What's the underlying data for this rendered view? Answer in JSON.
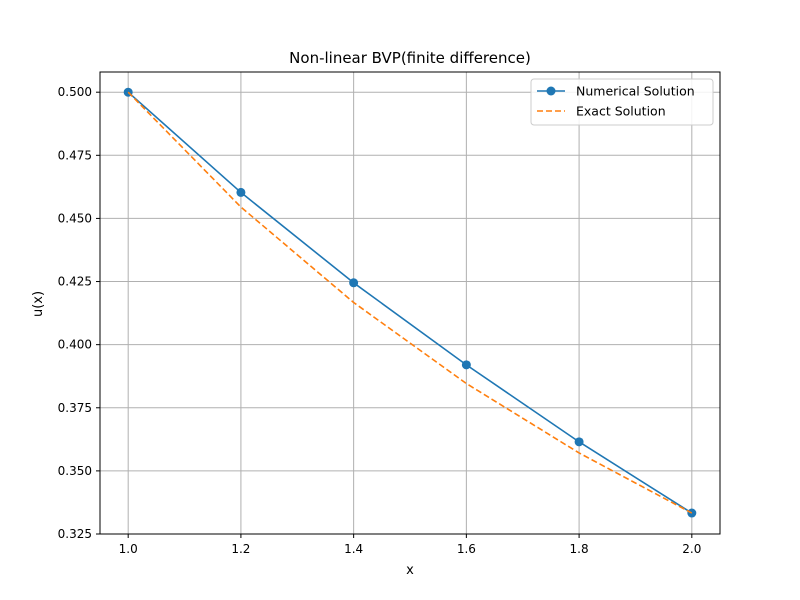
{
  "chart_data": {
    "type": "line",
    "title": "Non-linear BVP(finite difference)",
    "xlabel": "x",
    "ylabel": "u(x)",
    "xlim": [
      0.95,
      2.05
    ],
    "ylim": [
      0.325,
      0.508
    ],
    "xticks": [
      1.0,
      1.2,
      1.4,
      1.6,
      1.8,
      2.0
    ],
    "xtick_labels": [
      "1.0",
      "1.2",
      "1.4",
      "1.6",
      "1.8",
      "2.0"
    ],
    "yticks": [
      0.325,
      0.35,
      0.375,
      0.4,
      0.425,
      0.45,
      0.475,
      0.5
    ],
    "ytick_labels": [
      "0.325",
      "0.350",
      "0.375",
      "0.400",
      "0.425",
      "0.450",
      "0.475",
      "0.500"
    ],
    "grid": true,
    "legend_position": "top-right",
    "series": [
      {
        "name": "Numerical Solution",
        "style": "solid",
        "marker": "circle",
        "color": "#1f77b4",
        "x": [
          1.0,
          1.2,
          1.4,
          1.6,
          1.8,
          2.0
        ],
        "y": [
          0.5,
          0.4603,
          0.4245,
          0.392,
          0.3615,
          0.3333
        ]
      },
      {
        "name": "Exact Solution",
        "style": "dashed",
        "marker": "none",
        "color": "#ff7f0e",
        "x": [
          1.0,
          1.2,
          1.4,
          1.6,
          1.8,
          2.0
        ],
        "y": [
          0.5,
          0.4545,
          0.4167,
          0.3846,
          0.3571,
          0.3333
        ]
      }
    ]
  }
}
